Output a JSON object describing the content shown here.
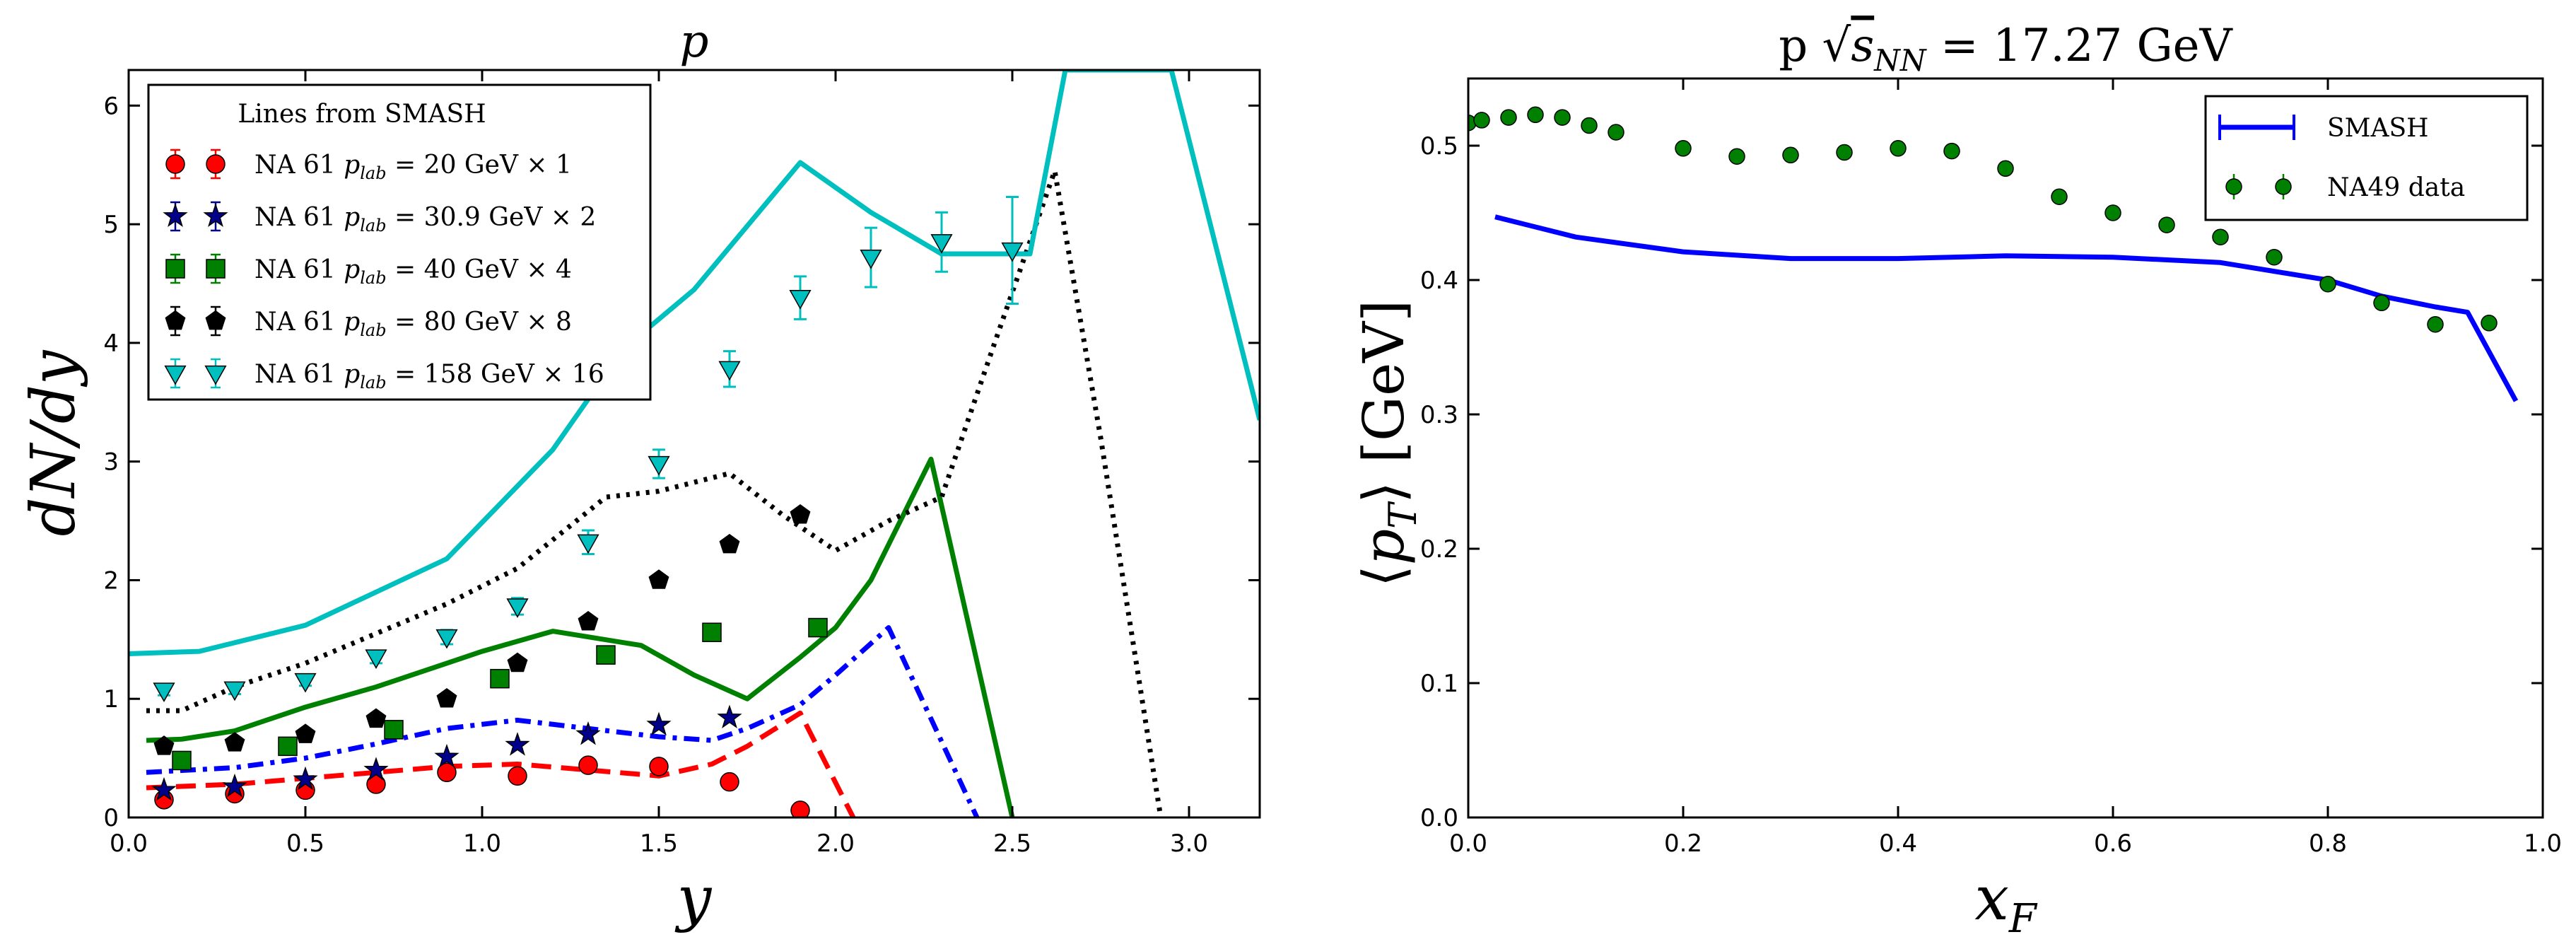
{
  "chart_data": [
    {
      "type": "line+scatter",
      "title": "p",
      "xlabel": "y",
      "ylabel": "dN/dy",
      "xlim": [
        0.0,
        3.2
      ],
      "ylim": [
        0.0,
        6.3
      ],
      "xticks": [
        "0.0",
        "0.5",
        "1.0",
        "1.5",
        "2.0",
        "2.5",
        "3.0"
      ],
      "yticks": [
        "0",
        "1",
        "2",
        "3",
        "4",
        "5",
        "6"
      ],
      "legend_title": "Lines from SMASH",
      "legend_position": "top-left",
      "lines": [
        {
          "name": "SMASH 20 GeV x1",
          "color": "#ff0000",
          "style": "dashed",
          "x": [
            0.05,
            0.3,
            0.5,
            0.7,
            0.9,
            1.1,
            1.3,
            1.5,
            1.65,
            1.75,
            1.9,
            2.05
          ],
          "y": [
            0.25,
            0.28,
            0.33,
            0.38,
            0.43,
            0.45,
            0.4,
            0.35,
            0.45,
            0.6,
            0.88,
            0.0
          ]
        },
        {
          "name": "SMASH 30.9 GeV x2",
          "color": "#0000ff",
          "style": "dashdot",
          "x": [
            0.05,
            0.3,
            0.5,
            0.7,
            0.9,
            1.1,
            1.3,
            1.5,
            1.65,
            1.75,
            1.9,
            2.0,
            2.15,
            2.4
          ],
          "y": [
            0.38,
            0.42,
            0.5,
            0.62,
            0.75,
            0.82,
            0.75,
            0.68,
            0.65,
            0.75,
            0.95,
            1.2,
            1.6,
            0.0
          ]
        },
        {
          "name": "SMASH 40 GeV x4",
          "color": "#008000",
          "style": "solid",
          "x": [
            0.05,
            0.15,
            0.3,
            0.5,
            0.7,
            0.9,
            1.0,
            1.2,
            1.45,
            1.6,
            1.75,
            1.9,
            2.0,
            2.1,
            2.27,
            2.5
          ],
          "y": [
            0.65,
            0.66,
            0.73,
            0.93,
            1.1,
            1.3,
            1.4,
            1.57,
            1.45,
            1.2,
            1.0,
            1.35,
            1.6,
            2.0,
            3.02,
            0.0
          ]
        },
        {
          "name": "SMASH 80 GeV x8",
          "color": "#000000",
          "style": "dotted",
          "x": [
            0.05,
            0.15,
            0.3,
            0.5,
            0.7,
            0.9,
            1.1,
            1.35,
            1.5,
            1.7,
            1.85,
            2.0,
            2.15,
            2.3,
            2.45,
            2.62,
            2.75,
            2.92
          ],
          "y": [
            0.9,
            0.9,
            1.1,
            1.3,
            1.55,
            1.8,
            2.1,
            2.7,
            2.75,
            2.9,
            2.55,
            2.25,
            2.5,
            2.7,
            4.0,
            5.45,
            3.2,
            0.0
          ]
        },
        {
          "name": "SMASH 158 GeV x16",
          "color": "#00bfbf",
          "style": "solid",
          "x": [
            0.0,
            0.2,
            0.5,
            0.9,
            1.2,
            1.4,
            1.6,
            1.9,
            2.1,
            2.3,
            2.55,
            2.65,
            2.95,
            3.2
          ],
          "y": [
            1.38,
            1.4,
            1.62,
            2.18,
            3.1,
            3.95,
            4.45,
            5.52,
            5.1,
            4.75,
            4.75,
            6.3,
            6.3,
            3.35
          ]
        }
      ],
      "series": [
        {
          "name": "NA 61 p_lab = 20 GeV × 1",
          "label_pre": "NA 61 ",
          "label_sub": "lab",
          "label_post": " = 20 GeV × 1",
          "color": "#ff0000",
          "marker": "circle",
          "x": [
            0.1,
            0.3,
            0.5,
            0.7,
            0.9,
            1.1,
            1.3,
            1.5,
            1.7,
            1.9
          ],
          "y": [
            0.15,
            0.2,
            0.23,
            0.28,
            0.38,
            0.35,
            0.44,
            0.43,
            0.3,
            0.06
          ]
        },
        {
          "name": "NA 61 p_lab = 30.9 GeV × 2",
          "label_pre": "NA 61 ",
          "label_sub": "lab",
          "label_post": " = 30.9 GeV × 2",
          "color": "#00008b",
          "marker": "star",
          "x": [
            0.1,
            0.3,
            0.5,
            0.7,
            0.9,
            1.1,
            1.3,
            1.5,
            1.7
          ],
          "y": [
            0.23,
            0.26,
            0.32,
            0.4,
            0.51,
            0.61,
            0.7,
            0.78,
            0.84
          ]
        },
        {
          "name": "NA 61 p_lab = 40 GeV × 4",
          "label_pre": "NA 61 ",
          "label_sub": "lab",
          "label_post": " = 40 GeV × 4",
          "color": "#008000",
          "marker": "square",
          "x": [
            0.15,
            0.45,
            0.75,
            1.05,
            1.35,
            1.65,
            1.95
          ],
          "y": [
            0.48,
            0.6,
            0.74,
            1.17,
            1.37,
            1.56,
            1.6
          ]
        },
        {
          "name": "NA 61 p_lab = 80 GeV × 8",
          "label_pre": "NA 61 ",
          "label_sub": "lab",
          "label_post": " = 80 GeV × 8",
          "color": "#000000",
          "marker": "pentagon",
          "x": [
            0.1,
            0.3,
            0.5,
            0.7,
            0.9,
            1.1,
            1.3,
            1.5,
            1.7,
            1.9
          ],
          "y": [
            0.6,
            0.63,
            0.7,
            0.83,
            1.0,
            1.3,
            1.65,
            2.0,
            2.3,
            2.55
          ]
        },
        {
          "name": "NA 61 p_lab = 158 GeV × 16",
          "label_pre": "NA 61 ",
          "label_sub": "lab",
          "label_post": " = 158 GeV × 16",
          "color": "#00bfbf",
          "marker": "triangle-down",
          "x": [
            0.1,
            0.3,
            0.5,
            0.7,
            0.9,
            1.1,
            1.3,
            1.5,
            1.7,
            1.9,
            2.1,
            2.3,
            2.5
          ],
          "y": [
            1.07,
            1.08,
            1.15,
            1.35,
            1.52,
            1.78,
            2.32,
            2.98,
            3.78,
            4.38,
            4.72,
            4.85,
            4.78
          ],
          "err": [
            0.04,
            0.04,
            0.04,
            0.05,
            0.06,
            0.07,
            0.1,
            0.12,
            0.15,
            0.18,
            0.25,
            0.25,
            0.45
          ]
        }
      ]
    },
    {
      "type": "line+scatter",
      "title": "p √s_NN = 17.27 GeV",
      "title_pre": "p ",
      "title_mid": "s",
      "title_sub": "NN",
      "title_post": " = 17.27 GeV",
      "xlabel": "x_F",
      "ylabel": "⟨p_T⟩ [GeV]",
      "xlim": [
        0.0,
        1.0
      ],
      "ylim": [
        0.0,
        0.55
      ],
      "xticks": [
        "0.0",
        "0.2",
        "0.4",
        "0.6",
        "0.8",
        "1.0"
      ],
      "yticks": [
        "0.0",
        "0.1",
        "0.2",
        "0.3",
        "0.4",
        "0.5"
      ],
      "legend_position": "top-right",
      "lines": [
        {
          "name": "SMASH",
          "color": "#0000ff",
          "style": "solid",
          "x": [
            0.025,
            0.1,
            0.2,
            0.3,
            0.4,
            0.5,
            0.6,
            0.7,
            0.8,
            0.85,
            0.9,
            0.93,
            0.975
          ],
          "y": [
            0.447,
            0.432,
            0.421,
            0.416,
            0.416,
            0.418,
            0.417,
            0.413,
            0.4,
            0.388,
            0.38,
            0.376,
            0.31
          ]
        }
      ],
      "series": [
        {
          "name": "NA49 data",
          "color": "#008000",
          "marker": "circle",
          "x": [
            0.0,
            0.0125,
            0.0375,
            0.0625,
            0.0875,
            0.1125,
            0.1375,
            0.2,
            0.25,
            0.3,
            0.35,
            0.4,
            0.45,
            0.5,
            0.55,
            0.6,
            0.65,
            0.7,
            0.75,
            0.8,
            0.85,
            0.9,
            0.95
          ],
          "y": [
            0.517,
            0.519,
            0.521,
            0.523,
            0.521,
            0.515,
            0.51,
            0.498,
            0.492,
            0.493,
            0.495,
            0.498,
            0.496,
            0.483,
            0.462,
            0.45,
            0.441,
            0.432,
            0.417,
            0.397,
            0.383,
            0.367,
            0.368
          ]
        }
      ]
    }
  ]
}
